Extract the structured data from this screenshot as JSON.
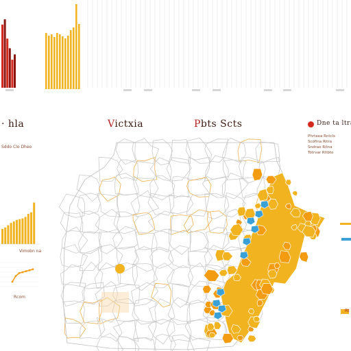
{
  "header": {
    "left_title": "· hla",
    "center_title_first": "V",
    "center_title_rest": "ictxia",
    "right_title_first": "P",
    "right_title_rest": "bts Scts",
    "far_right_title": "Dne ta ltra"
  },
  "left_panel": {
    "legend_caption": "Sddo Clo Dheo",
    "mini_caption": "Vimobn na",
    "trend_caption": "Rcom"
  },
  "right_panel": {
    "legend_lines": [
      "Phrtaea Rntcls",
      "Scofina Ritra",
      "Sndrao Ritna",
      "Totrvar Ritbto"
    ],
    "side_labels": [
      "Rt"
    ]
  },
  "colors": {
    "accent_yellow": "#f2b321",
    "accent_orange": "#f39c12",
    "accent_blue": "#3aa0d8",
    "accent_red": "#d42a1e",
    "dark_red": "#8a1410",
    "border_white_map": "#c9c9c9",
    "border_orange": "#f0b04a"
  },
  "chart_data": [
    {
      "type": "bar",
      "title": "",
      "categories": [
        "",
        "",
        "",
        "",
        "",
        ""
      ],
      "series": [
        {
          "values": [
            72,
            78,
            56,
            45,
            32,
            38
          ]
        }
      ],
      "xlabel": "",
      "ylabel": "",
      "ylim": [
        0,
        100
      ],
      "grid": false
    },
    {
      "type": "bar",
      "title": "",
      "categories": [
        "",
        "",
        "",
        "",
        "",
        "",
        "",
        "",
        "",
        "",
        "",
        "",
        ""
      ],
      "series": [
        {
          "values": [
            82,
            78,
            80,
            76,
            82,
            80,
            77,
            74,
            78,
            86,
            90,
            124,
            95
          ]
        }
      ],
      "ylim": [
        0,
        130
      ],
      "grid": false
    },
    {
      "type": "bar",
      "title": "",
      "categories": [
        "",
        "",
        "",
        "",
        "",
        "",
        "",
        "",
        "",
        "",
        "",
        ""
      ],
      "series": [
        {
          "values": [
            20,
            22,
            25,
            28,
            30,
            32,
            33,
            34,
            36,
            40,
            42,
            55
          ]
        }
      ],
      "ylim": [
        0,
        60
      ],
      "grid": false
    },
    {
      "type": "line",
      "title": "",
      "x": [
        1,
        2,
        3,
        4,
        5,
        6,
        7
      ],
      "series": [
        {
          "values": [
            10,
            22,
            28,
            30,
            32,
            34,
            36
          ]
        }
      ],
      "grid": true
    }
  ]
}
